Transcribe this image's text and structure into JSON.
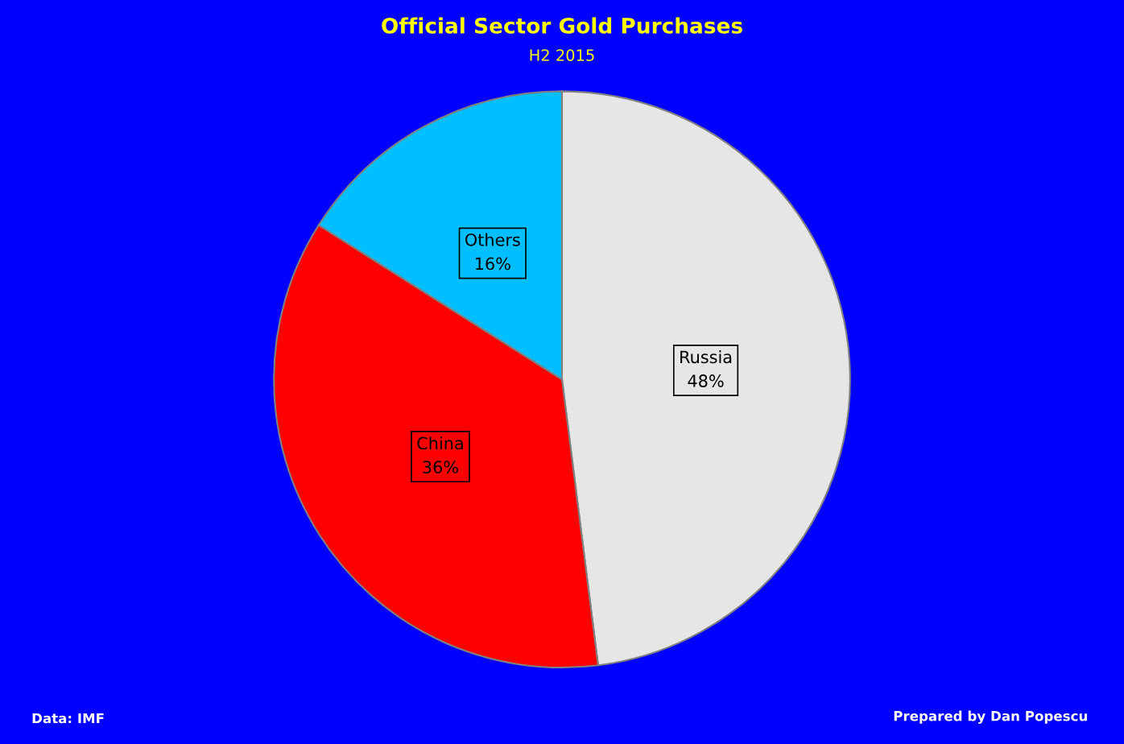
{
  "chart_data": {
    "type": "pie",
    "title": "Official Sector Gold Purchases",
    "subtitle": "H2 2015",
    "categories": [
      "Russia",
      "China",
      "Others"
    ],
    "values": [
      48,
      36,
      16
    ],
    "colors": [
      "#e6e6e6",
      "#ff0000",
      "#00bfff"
    ],
    "value_labels": [
      "48%",
      "36%",
      "16%"
    ],
    "annotations": [
      "Data: IMF",
      "Prepared by Dan Popescu"
    ]
  }
}
